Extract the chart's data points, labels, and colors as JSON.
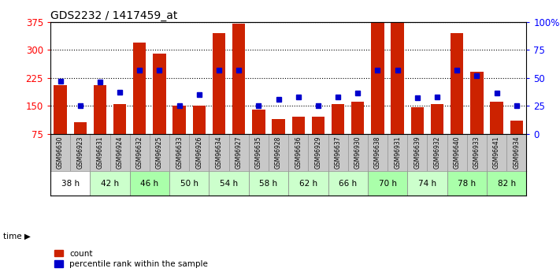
{
  "title": "GDS2232 / 1417459_at",
  "samples": [
    "GSM96630",
    "GSM96923",
    "GSM96631",
    "GSM96924",
    "GSM96632",
    "GSM96925",
    "GSM96633",
    "GSM96926",
    "GSM96634",
    "GSM96927",
    "GSM96635",
    "GSM96928",
    "GSM96636",
    "GSM96929",
    "GSM96637",
    "GSM96930",
    "GSM96638",
    "GSM96931",
    "GSM96639",
    "GSM96932",
    "GSM96640",
    "GSM96933",
    "GSM96641",
    "GSM96934"
  ],
  "time_groups": [
    {
      "label": "38 h",
      "indices": [
        0,
        1
      ],
      "color": "#ffffff"
    },
    {
      "label": "42 h",
      "indices": [
        2,
        3
      ],
      "color": "#ccffcc"
    },
    {
      "label": "46 h",
      "indices": [
        4,
        5
      ],
      "color": "#aaffaa"
    },
    {
      "label": "50 h",
      "indices": [
        6,
        7
      ],
      "color": "#ccffcc"
    },
    {
      "label": "54 h",
      "indices": [
        8,
        9
      ],
      "color": "#ccffcc"
    },
    {
      "label": "58 h",
      "indices": [
        10,
        11
      ],
      "color": "#ccffcc"
    },
    {
      "label": "62 h",
      "indices": [
        12,
        13
      ],
      "color": "#ccffcc"
    },
    {
      "label": "66 h",
      "indices": [
        14,
        15
      ],
      "color": "#ccffcc"
    },
    {
      "label": "70 h",
      "indices": [
        16,
        17
      ],
      "color": "#aaffaa"
    },
    {
      "label": "74 h",
      "indices": [
        18,
        19
      ],
      "color": "#ccffcc"
    },
    {
      "label": "78 h",
      "indices": [
        20,
        21
      ],
      "color": "#aaffaa"
    },
    {
      "label": "82 h",
      "indices": [
        22,
        23
      ],
      "color": "#aaffaa"
    }
  ],
  "bar_heights": [
    205,
    105,
    205,
    155,
    320,
    290,
    150,
    150,
    345,
    370,
    140,
    115,
    120,
    120,
    155,
    160,
    375,
    375,
    145,
    155,
    345,
    240,
    160,
    110
  ],
  "percentile_ranks": [
    47,
    25,
    46,
    37,
    57,
    57,
    25,
    35,
    57,
    57,
    25,
    31,
    33,
    25,
    33,
    36,
    57,
    57,
    32,
    33,
    57,
    52,
    36,
    25
  ],
  "ylim_left": [
    75,
    375
  ],
  "ylim_right": [
    0,
    100
  ],
  "yticks_left": [
    75,
    150,
    225,
    300,
    375
  ],
  "yticks_right": [
    0,
    25,
    50,
    75,
    100
  ],
  "ytick_labels_right": [
    "0",
    "25",
    "50",
    "75",
    "100%"
  ],
  "bar_color": "#cc2200",
  "dot_color": "#0000cc",
  "bg_color": "#ffffff",
  "sample_bg_even": "#cccccc",
  "sample_bg_odd": "#bbbbbb"
}
